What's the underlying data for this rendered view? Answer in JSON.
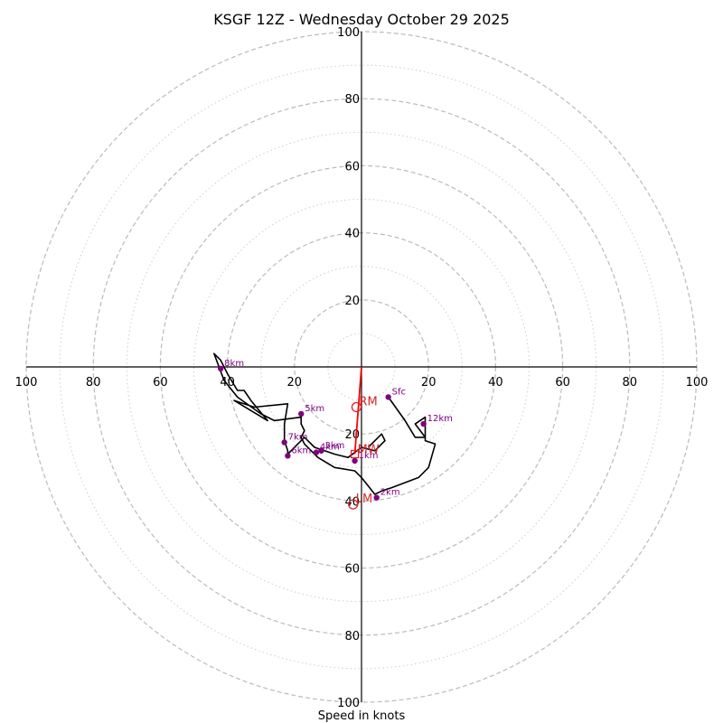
{
  "chart_data": {
    "type": "hodograph",
    "title": "KSGF 12Z - Wednesday October 29 2025",
    "xlabel": "Speed in knots",
    "range": [
      -100,
      100
    ],
    "major_rings": [
      20,
      40,
      60,
      80,
      100
    ],
    "minor_rings": [
      10,
      30,
      50,
      70,
      90
    ],
    "x_tick_labels": [
      {
        "u": -100,
        "label": "100"
      },
      {
        "u": -80,
        "label": "80"
      },
      {
        "u": -60,
        "label": "60"
      },
      {
        "u": -40,
        "label": "40"
      },
      {
        "u": -20,
        "label": "20"
      },
      {
        "u": 20,
        "label": "20"
      },
      {
        "u": 40,
        "label": "40"
      },
      {
        "u": 60,
        "label": "60"
      },
      {
        "u": 80,
        "label": "80"
      },
      {
        "u": 100,
        "label": "100"
      }
    ],
    "y_tick_labels": [
      {
        "v": 100,
        "label": "100"
      },
      {
        "v": 80,
        "label": "80"
      },
      {
        "v": 60,
        "label": "60"
      },
      {
        "v": 40,
        "label": "40"
      },
      {
        "v": 20,
        "label": "20"
      },
      {
        "v": -20,
        "label": "20"
      },
      {
        "v": -40,
        "label": "40"
      },
      {
        "v": -60,
        "label": "60"
      },
      {
        "v": -80,
        "label": "80"
      },
      {
        "v": -100,
        "label": "100"
      }
    ],
    "wind_trace": [
      [
        8,
        -9
      ],
      [
        13,
        -16
      ],
      [
        16,
        -21
      ],
      [
        19,
        -21
      ],
      [
        16,
        -17
      ],
      [
        19,
        -15
      ],
      [
        19,
        -22
      ],
      [
        22,
        -23
      ],
      [
        20,
        -30
      ],
      [
        17,
        -33
      ],
      [
        9,
        -36
      ],
      [
        6,
        -37
      ],
      [
        4,
        -38
      ],
      [
        0,
        -33
      ],
      [
        -2,
        -31
      ],
      [
        -8,
        -30
      ],
      [
        -13,
        -27
      ],
      [
        -17,
        -23
      ],
      [
        -18,
        -21
      ],
      [
        -17,
        -19
      ],
      [
        -18,
        -17
      ],
      [
        -18,
        -15
      ],
      [
        -26,
        -16
      ],
      [
        -30,
        -14
      ],
      [
        -37,
        -9
      ],
      [
        -41,
        -4
      ],
      [
        -44,
        4
      ],
      [
        -42,
        2
      ],
      [
        -40,
        -2
      ],
      [
        -37,
        -7
      ],
      [
        -35,
        -7
      ],
      [
        -33,
        -10
      ],
      [
        -28,
        -16
      ],
      [
        -38,
        -10
      ],
      [
        -32,
        -12
      ],
      [
        -22,
        -11
      ],
      [
        -23,
        -17
      ],
      [
        -23,
        -22
      ],
      [
        -22,
        -25
      ],
      [
        -22,
        -26
      ],
      [
        -19,
        -23
      ],
      [
        -17,
        -21
      ],
      [
        -14,
        -24
      ],
      [
        -11,
        -25
      ],
      [
        -8,
        -26
      ],
      [
        -4,
        -27
      ],
      [
        0,
        -24
      ],
      [
        4,
        -25
      ],
      [
        7,
        -22
      ],
      [
        6,
        -20
      ],
      [
        3,
        -23
      ],
      [
        2,
        -24
      ]
    ],
    "height_markers": [
      {
        "label": "Sfc",
        "u": 8,
        "v": -9
      },
      {
        "label": "12km",
        "u": 18.5,
        "v": -17
      },
      {
        "label": "1km",
        "u": -2,
        "v": -28
      },
      {
        "label": "2km",
        "u": 4.5,
        "v": -39
      },
      {
        "label": "3km",
        "u": -12,
        "v": -25
      },
      {
        "label": "4km",
        "u": -13.5,
        "v": -25.5
      },
      {
        "label": "5km",
        "u": -18,
        "v": -14
      },
      {
        "label": "6km",
        "u": -22,
        "v": -26.5
      },
      {
        "label": "7km",
        "u": -23,
        "v": -22.5
      },
      {
        "label": "8km",
        "u": -42,
        "v": -0.5
      }
    ],
    "storm_motion": {
      "RM": {
        "label": "RM",
        "u": -1.5,
        "v": -12
      },
      "LM": {
        "label": "LM",
        "u": -2.5,
        "v": -41
      },
      "MW": {
        "label": "MW",
        "u": -2,
        "v": -26
      }
    },
    "colors": {
      "trace": "#000000",
      "markers": "#800080",
      "storm_motion": "#d62728",
      "shear_vector": "#ff0000",
      "rings": "#bbbbbb"
    }
  }
}
